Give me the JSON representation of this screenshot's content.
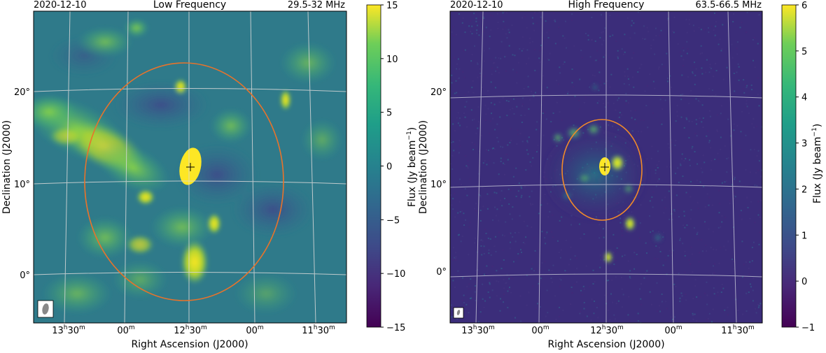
{
  "chart_data": [
    {
      "type": "heatmap",
      "date": "2020-12-10",
      "title": "Low Frequency",
      "freq_range": "29.5-32 MHz",
      "xlabel": "Right Ascension (J2000)",
      "ylabel": "Declination (J2000)",
      "x_ticks": [
        {
          "label": "13",
          "sup": "h",
          "mid": "30",
          "sup2": "m"
        },
        {
          "label": "00",
          "sup": "m",
          "mid": "",
          "sup2": ""
        },
        {
          "label": "12",
          "sup": "h",
          "mid": "30",
          "sup2": "m"
        },
        {
          "label": "00",
          "sup": "m",
          "mid": "",
          "sup2": ""
        },
        {
          "label": "11",
          "sup": "h",
          "mid": "30",
          "sup2": "m"
        }
      ],
      "y_ticks": [
        "20°",
        "10°",
        "0°"
      ],
      "colorbar": {
        "label": "Flux (Jy beam",
        "label_sup": "−1",
        "label_end": ")",
        "min": -15,
        "max": 15,
        "ticks": [
          "15",
          "10",
          "5",
          "0",
          "−5",
          "−10",
          "−15"
        ]
      },
      "colormap": "viridis",
      "background": "#2f7a8a",
      "grid": true,
      "beam_marker": "bottom-left",
      "contour_color": "#e8732b",
      "source_marker": "+"
    },
    {
      "type": "heatmap",
      "date": "2020-12-10",
      "title": "High Frequency",
      "freq_range": "63.5-66.5 MHz",
      "xlabel": "Right Ascension (J2000)",
      "ylabel": "Declination (J2000)",
      "x_ticks": [
        {
          "label": "13",
          "sup": "h",
          "mid": "30",
          "sup2": "m"
        },
        {
          "label": "00",
          "sup": "m",
          "mid": "",
          "sup2": ""
        },
        {
          "label": "12",
          "sup": "h",
          "mid": "30",
          "sup2": "m"
        },
        {
          "label": "00",
          "sup": "m",
          "mid": "",
          "sup2": ""
        },
        {
          "label": "11",
          "sup": "h",
          "mid": "30",
          "sup2": "m"
        }
      ],
      "y_ticks": [
        "20°",
        "10°",
        "0°"
      ],
      "colorbar": {
        "label": "Flux (Jy beam",
        "label_sup": "−1",
        "label_end": ")",
        "min": -1,
        "max": 6,
        "ticks": [
          "6",
          "5",
          "4",
          "3",
          "2",
          "1",
          "0",
          "−1"
        ]
      },
      "colormap": "viridis",
      "background": "#3b2d7a",
      "grid": true,
      "beam_marker": "bottom-left",
      "contour_color": "#f08a2a",
      "source_marker": "+"
    }
  ]
}
